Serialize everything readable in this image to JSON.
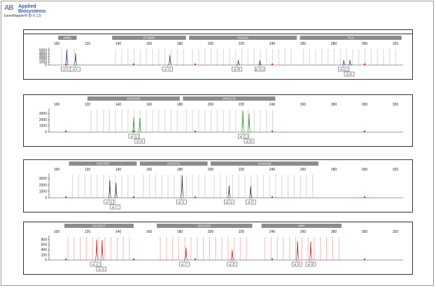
{
  "header": {
    "logo_mark": "AB",
    "company_name": "Applied Biosystems",
    "software_title": "GeneMapper® ID-X 1.5"
  },
  "x_axis_ticks": [
    100,
    120,
    140,
    160,
    180,
    200,
    220,
    240,
    260,
    280,
    300,
    320
  ],
  "panels": [
    {
      "dye_color": "#3c3c8c",
      "y_ticks": [
        0,
        1000,
        2000,
        3000,
        4000,
        5000
      ],
      "y_max": 5500,
      "markers": [
        {
          "label": "AMEL",
          "from": 101,
          "to": 113
        },
        {
          "label": "D7S820",
          "from": 136,
          "to": 184
        },
        {
          "label": "D21S11",
          "from": 186,
          "to": 256
        },
        {
          "label": "FGA",
          "from": 258,
          "to": 324
        }
      ],
      "peaks": [
        {
          "x": 106.5,
          "h": 5200
        },
        {
          "x": 112.3,
          "h": 4000
        },
        {
          "x": 173.5,
          "h": 3300
        },
        {
          "x": 218,
          "h": 1700
        },
        {
          "x": 232,
          "h": 1600
        },
        {
          "x": 286.5,
          "h": 1700
        },
        {
          "x": 290.5,
          "h": 1700
        }
      ],
      "allele_labels": [
        {
          "text": "al X",
          "x": 106,
          "row": 0
        },
        {
          "text": "al Y",
          "x": 112,
          "row": 0
        },
        {
          "text": "al 12",
          "x": 172,
          "row": 0
        },
        {
          "text": "al 30",
          "x": 217,
          "row": 0
        },
        {
          "text": "al 32.2",
          "x": 232,
          "row": 0
        },
        {
          "text": "al 22",
          "x": 286,
          "row": 0
        },
        {
          "text": "al 23",
          "x": 290,
          "row": 1
        }
      ]
    },
    {
      "dye_color": "#2e9a2e",
      "y_ticks": [
        0,
        1000,
        2000,
        3000
      ],
      "y_max": 3600,
      "markers": [
        {
          "label": "D16S433",
          "from": 120,
          "to": 180
        },
        {
          "label": "D8S1179",
          "from": 182,
          "to": 242
        }
      ],
      "peaks": [
        {
          "x": 150,
          "h": 2300
        },
        {
          "x": 154,
          "h": 2300
        },
        {
          "x": 221,
          "h": 3400
        },
        {
          "x": 225,
          "h": 3000
        }
      ],
      "allele_labels": [
        {
          "text": "al 13",
          "x": 150,
          "row": 0
        },
        {
          "text": "al 14",
          "x": 154,
          "row": 1
        },
        {
          "text": "al 15",
          "x": 221,
          "row": 0
        },
        {
          "text": "al 16",
          "x": 225,
          "row": 1
        }
      ]
    },
    {
      "dye_color": "#333333",
      "y_ticks": [
        0,
        1000,
        2000,
        3000
      ],
      "y_max": 3600,
      "markers": [
        {
          "label": "CSF1PO",
          "from": 108,
          "to": 152
        },
        {
          "label": "CSF1PO",
          "from": 154,
          "to": 198
        },
        {
          "label": "D19S433",
          "from": 200,
          "to": 270
        }
      ],
      "peaks": [
        {
          "x": 134.5,
          "h": 2700
        },
        {
          "x": 138.5,
          "h": 2300
        },
        {
          "x": 181.5,
          "h": 3500
        },
        {
          "x": 212,
          "h": 1900
        },
        {
          "x": 226,
          "h": 1800
        }
      ],
      "allele_labels": [
        {
          "text": "al 13",
          "x": 134,
          "row": 0
        },
        {
          "text": "al 17",
          "x": 138,
          "row": 1
        },
        {
          "text": "al 11",
          "x": 181,
          "row": 0
        },
        {
          "text": "al 12",
          "x": 212,
          "row": 0
        },
        {
          "text": "al 15",
          "x": 226,
          "row": 0
        }
      ]
    },
    {
      "dye_color": "#b52222",
      "y_ticks": [
        0,
        200,
        400,
        600,
        800
      ],
      "y_max": 900,
      "markers": [
        {
          "label": "D13S317",
          "from": 105,
          "to": 150
        },
        {
          "label": "D5S2331",
          "from": 165,
          "to": 227
        },
        {
          "label": "vWA",
          "from": 233,
          "to": 285
        }
      ],
      "peaks": [
        {
          "x": 126,
          "h": 800
        },
        {
          "x": 129.5,
          "h": 780
        },
        {
          "x": 184,
          "h": 480
        },
        {
          "x": 214,
          "h": 390
        },
        {
          "x": 256.5,
          "h": 730
        },
        {
          "x": 265,
          "h": 710
        }
      ],
      "allele_labels": [
        {
          "text": "al 11",
          "x": 125,
          "row": 0
        },
        {
          "text": "al 13",
          "x": 129,
          "row": 1
        },
        {
          "text": "al 17",
          "x": 183,
          "row": 0
        },
        {
          "text": "al 25",
          "x": 214,
          "row": 0
        },
        {
          "text": "al 16",
          "x": 256,
          "row": 0
        },
        {
          "text": "al 18",
          "x": 265,
          "row": 0
        }
      ]
    }
  ]
}
